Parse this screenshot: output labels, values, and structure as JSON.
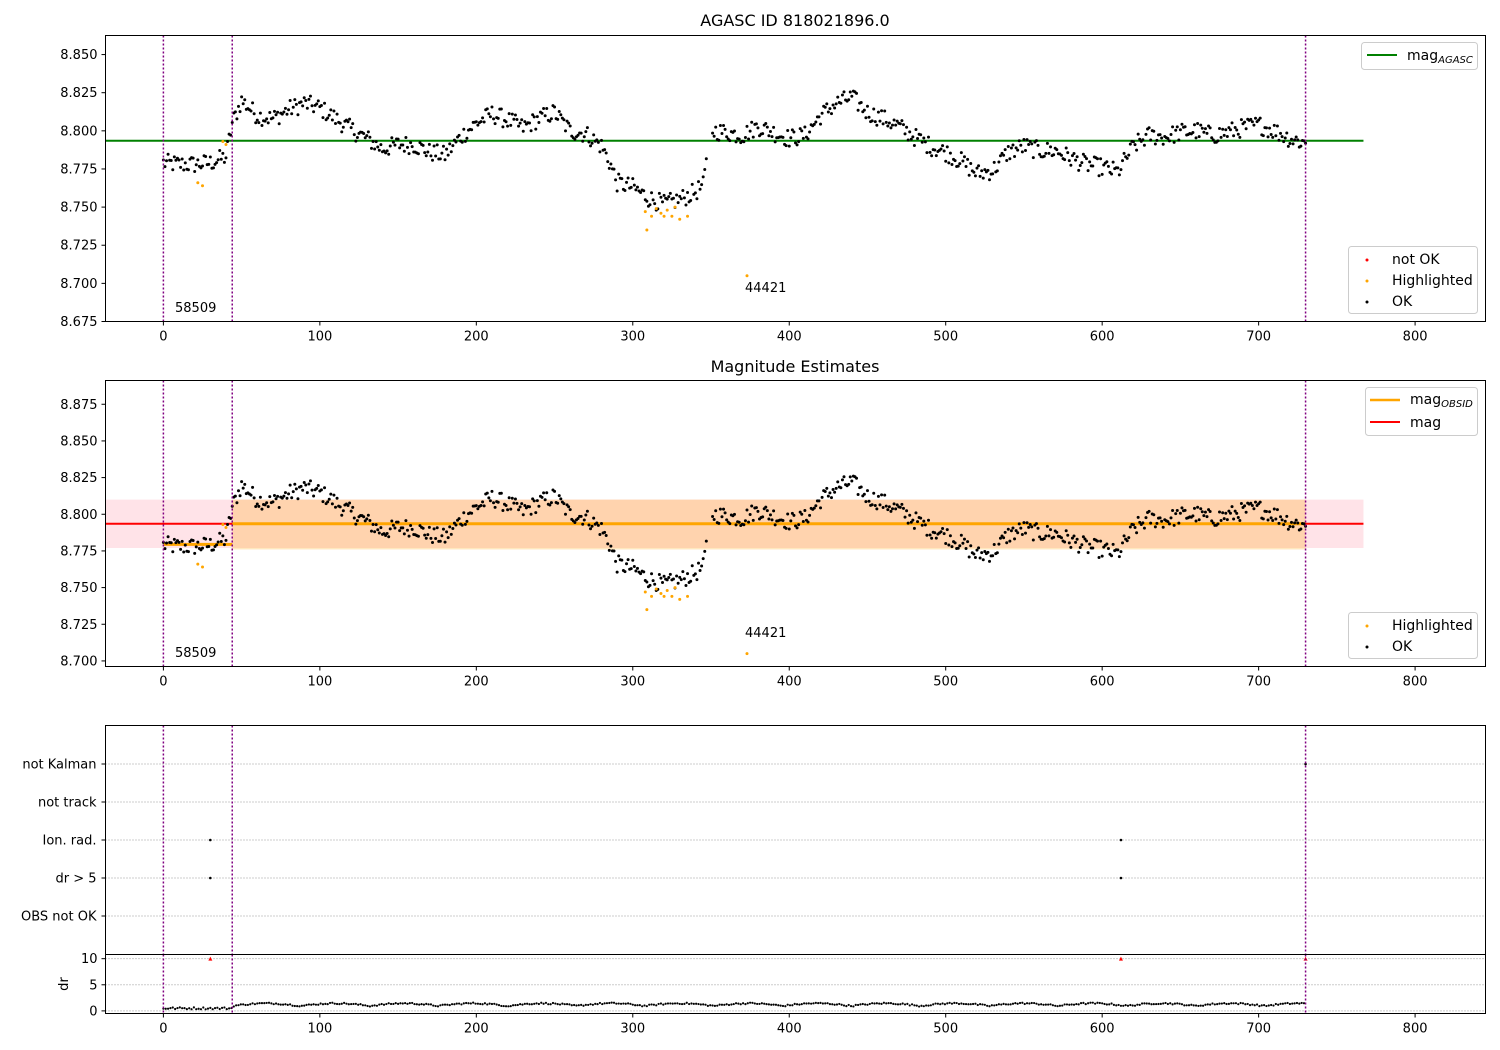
{
  "chart_data": [
    {
      "type": "scatter",
      "title": "AGASC ID 818021896.0",
      "xlabel": "",
      "ylabel": "",
      "xlim": [
        -37,
        845
      ],
      "ylim": [
        8.675,
        8.8625
      ],
      "xticks": [
        0,
        100,
        200,
        300,
        400,
        500,
        600,
        700,
        800
      ],
      "yticks": [
        "8.675",
        "8.700",
        "8.725",
        "8.750",
        "8.775",
        "8.800",
        "8.825",
        "8.850"
      ],
      "vlines": [
        0,
        44,
        730
      ],
      "hlines": [
        {
          "name": "mag_AGASC",
          "y": 8.7935,
          "x_range": [
            -37,
            767
          ],
          "color": "#008000"
        }
      ],
      "annotations": [
        {
          "text": "58509",
          "x": 8,
          "y": 8.681
        },
        {
          "text": "44421",
          "x": 372,
          "y": 8.694
        }
      ],
      "legend_lines": [
        {
          "label": "mag",
          "sub": "AGASC",
          "color": "#008000"
        }
      ],
      "legend_points": [
        {
          "label": "not OK",
          "color": "#ff0000"
        },
        {
          "label": "Highlighted",
          "color": "#ffa500"
        },
        {
          "label": "OK",
          "color": "#000000"
        }
      ]
    },
    {
      "type": "scatter",
      "title": "Magnitude Estimates",
      "xlabel": "",
      "ylabel": "",
      "xlim": [
        -37,
        845
      ],
      "ylim": [
        8.6962,
        8.8912
      ],
      "xticks": [
        0,
        100,
        200,
        300,
        400,
        500,
        600,
        700,
        800
      ],
      "yticks": [
        "8.700",
        "8.725",
        "8.750",
        "8.775",
        "8.800",
        "8.825",
        "8.850",
        "8.875"
      ],
      "vlines": [
        0,
        44,
        730
      ],
      "bands": [
        {
          "name": "mag",
          "x_range": [
            -37,
            767
          ],
          "y_range": [
            8.777,
            8.81
          ],
          "color": "#ffc0cb"
        },
        {
          "name": "mag_OBSID",
          "x_range": [
            44,
            730
          ],
          "y_range": [
            8.776,
            8.81
          ],
          "color": "#ffa500"
        }
      ],
      "hlines": [
        {
          "name": "mag",
          "y": 8.7935,
          "x_range": [
            -37,
            767
          ],
          "color": "#ff0000"
        },
        {
          "name": "mag_OBSID seg 1",
          "y": 8.7795,
          "x_range": [
            0,
            44
          ],
          "color": "#ffa500"
        },
        {
          "name": "mag_OBSID seg 2",
          "y": 8.7935,
          "x_range": [
            44,
            730
          ],
          "color": "#ffa500"
        }
      ],
      "annotations": [
        {
          "text": "58509",
          "x": 8,
          "y": 8.7025
        },
        {
          "text": "44421",
          "x": 372,
          "y": 8.7155
        }
      ],
      "legend_lines": [
        {
          "label": "mag",
          "sub": "OBSID",
          "color": "#ffa500"
        },
        {
          "label": "mag",
          "sub": "",
          "color": "#ff0000"
        }
      ],
      "legend_points": [
        {
          "label": "Highlighted",
          "color": "#ffa500"
        },
        {
          "label": "OK",
          "color": "#000000"
        }
      ]
    },
    {
      "type": "scatter",
      "title": "",
      "categories": [
        "not Kalman",
        "not track",
        "Ion. rad.",
        "dr > 5",
        "OBS not OK"
      ],
      "flags": [
        {
          "category": "not Kalman",
          "x": [
            730
          ]
        },
        {
          "category": "Ion. rad.",
          "x": [
            30,
            612
          ]
        },
        {
          "category": "dr > 5",
          "x": [
            30,
            612
          ]
        }
      ],
      "vlines": [
        0,
        44,
        730
      ],
      "xlim": [
        -37,
        845
      ]
    },
    {
      "type": "scatter",
      "title": "",
      "ylabel": "dr",
      "xlim": [
        -37,
        845
      ],
      "ylim": [
        -0.5,
        10.8
      ],
      "xticks": [
        0,
        100,
        200,
        300,
        400,
        500,
        600,
        700,
        800
      ],
      "yticks": [
        "0",
        "5",
        "10"
      ],
      "vlines": [
        0,
        44,
        730
      ],
      "high_points": [
        30,
        612,
        730
      ]
    }
  ]
}
